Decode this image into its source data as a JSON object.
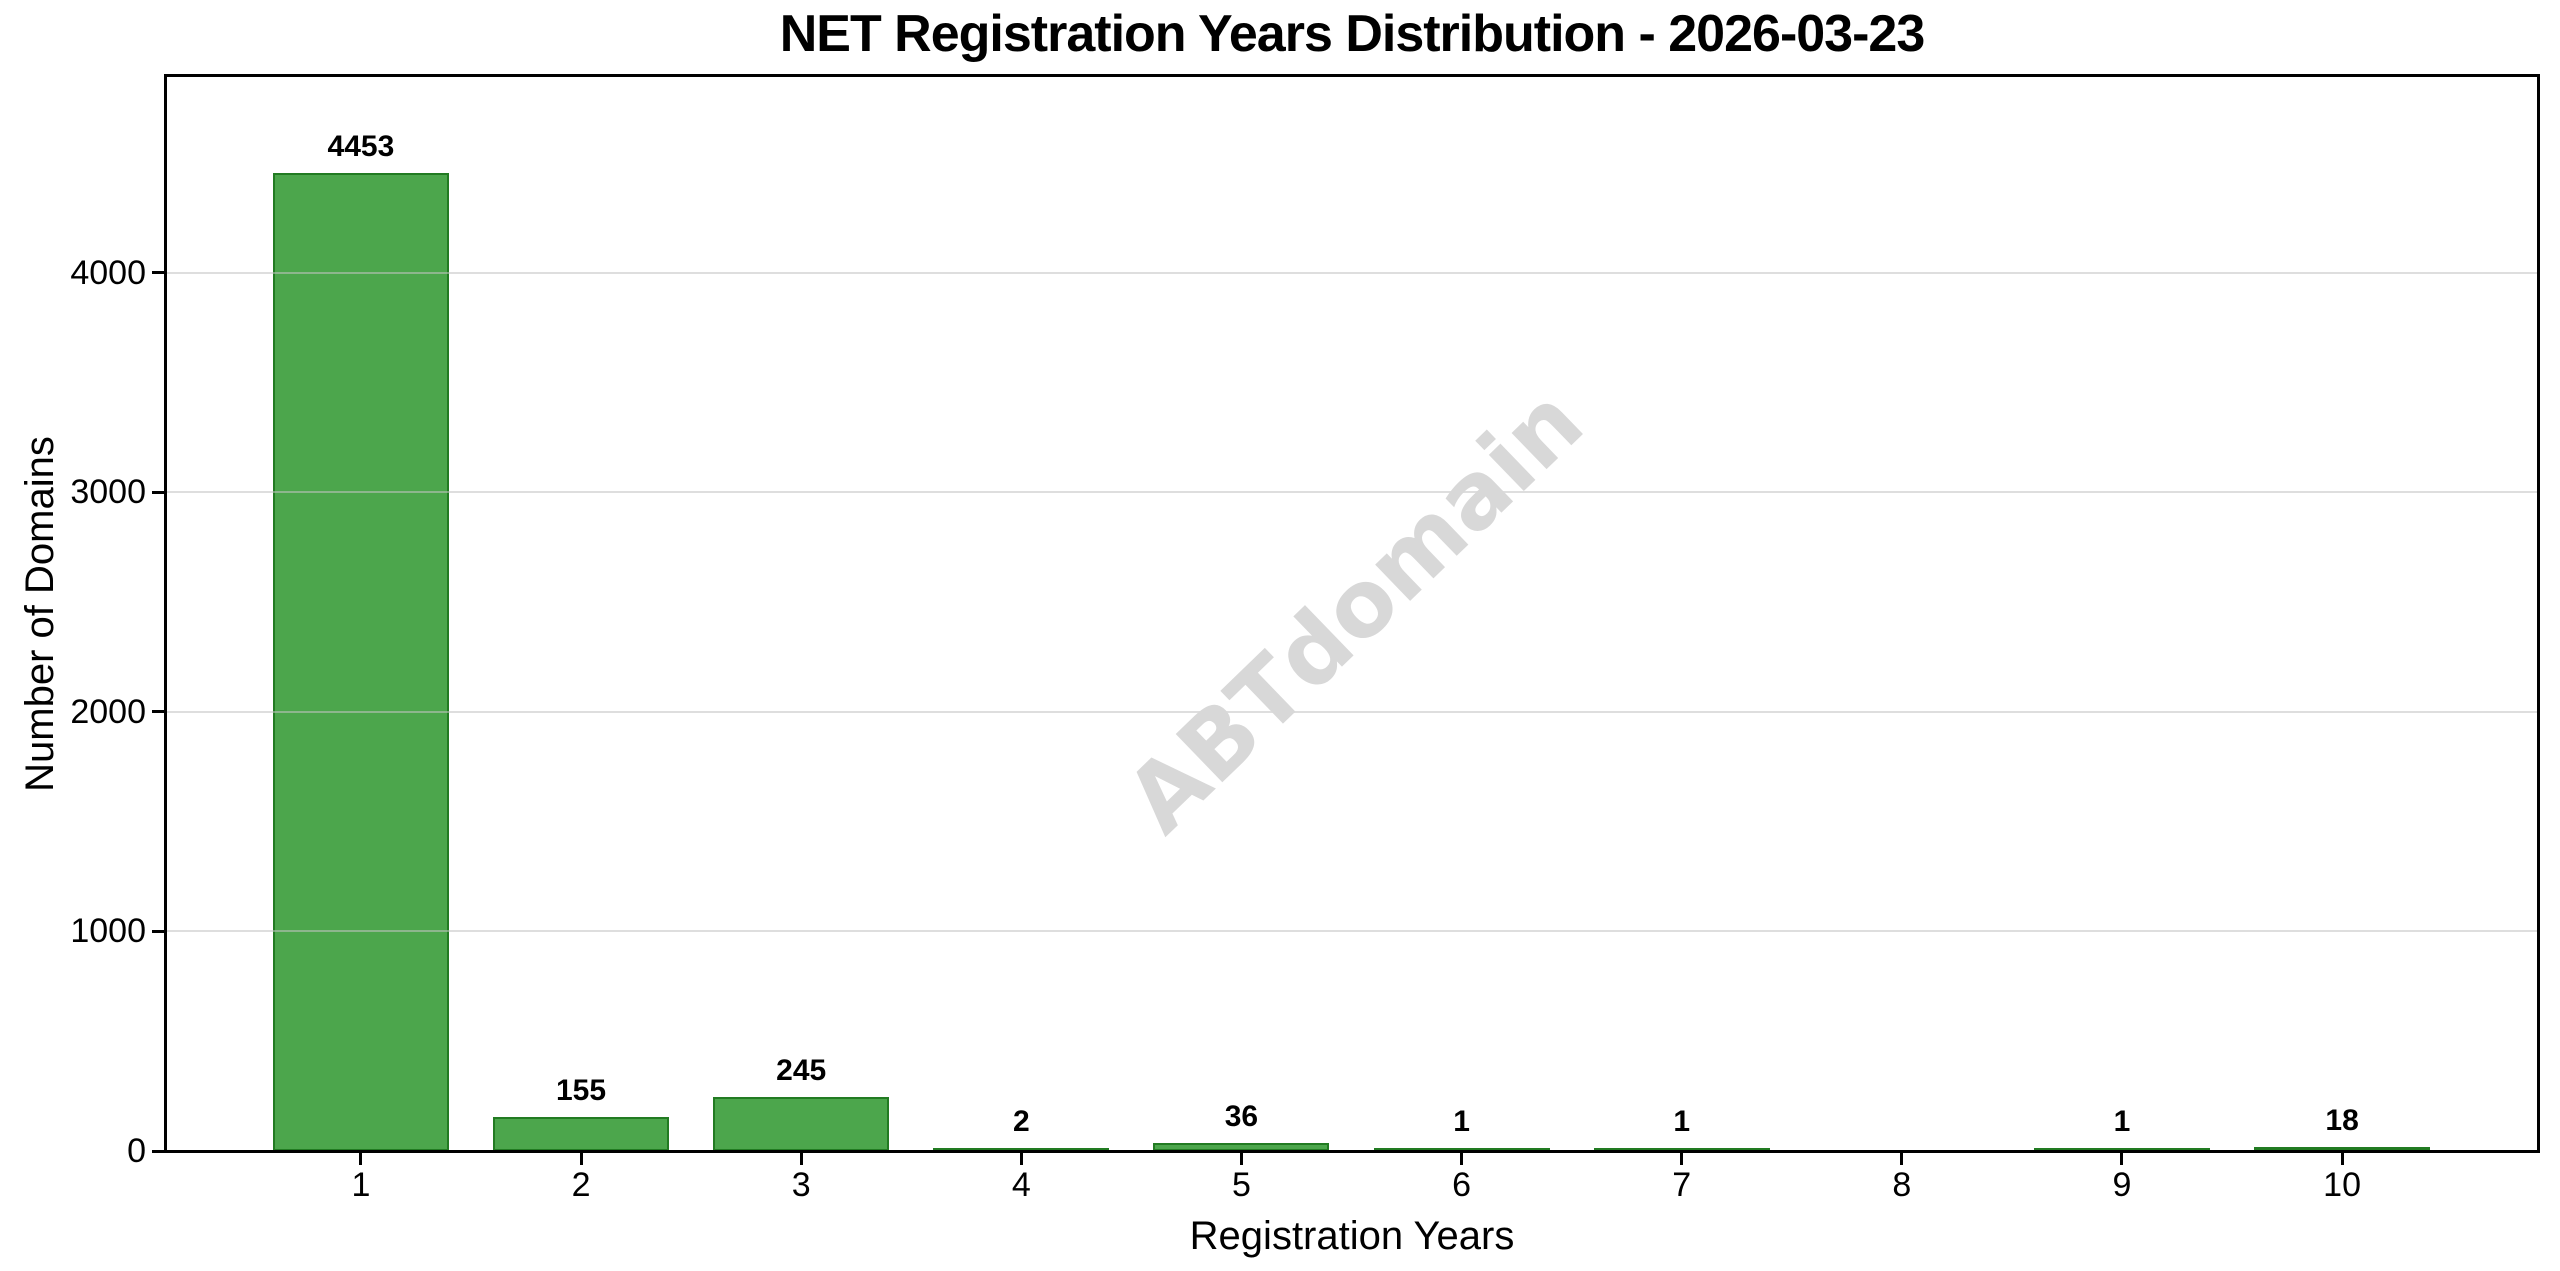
{
  "chart_data": {
    "type": "bar",
    "title": "NET Registration Years Distribution - 2026-03-23",
    "xlabel": "Registration Years",
    "ylabel": "Number of Domains",
    "categories": [
      "1",
      "2",
      "3",
      "4",
      "5",
      "6",
      "7",
      "8",
      "9",
      "10"
    ],
    "values": [
      4453,
      155,
      245,
      2,
      36,
      1,
      1,
      0,
      1,
      18
    ],
    "bar_value_labels": [
      "4453",
      "155",
      "245",
      "2",
      "36",
      "1",
      "1",
      "",
      "1",
      "18"
    ],
    "yticks": [
      0,
      1000,
      2000,
      3000,
      4000
    ],
    "ytick_labels": [
      "0",
      "1000",
      "2000",
      "3000",
      "4000"
    ],
    "ylim": [
      0,
      4900
    ],
    "grid": "horizontal",
    "legend": "none",
    "bar_color": "#4CA64C",
    "bar_edge_color": "#227B22",
    "watermark": "ABTdomain",
    "watermark_color": "#d8d8d8",
    "background_color": "#ffffff"
  }
}
